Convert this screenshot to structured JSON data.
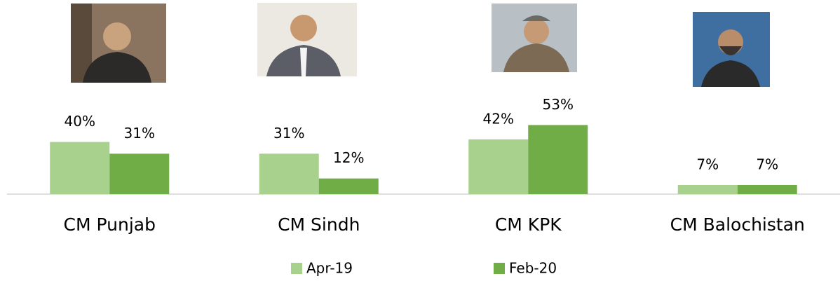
{
  "chart_data": {
    "type": "bar",
    "categories": [
      "CM Punjab",
      "CM Sindh",
      "CM KPK",
      "CM Balochistan"
    ],
    "series": [
      {
        "name": "Apr-19",
        "color": "#a9d18e",
        "values": [
          40,
          31,
          42,
          7
        ],
        "value_labels": [
          "40%",
          "31%",
          "42%",
          "7%"
        ]
      },
      {
        "name": "Feb-20",
        "color": "#70ad47",
        "values": [
          31,
          12,
          53,
          7
        ],
        "value_labels": [
          "31%",
          "12%",
          "53%",
          "7%"
        ]
      }
    ],
    "legend": "bottom"
  }
}
